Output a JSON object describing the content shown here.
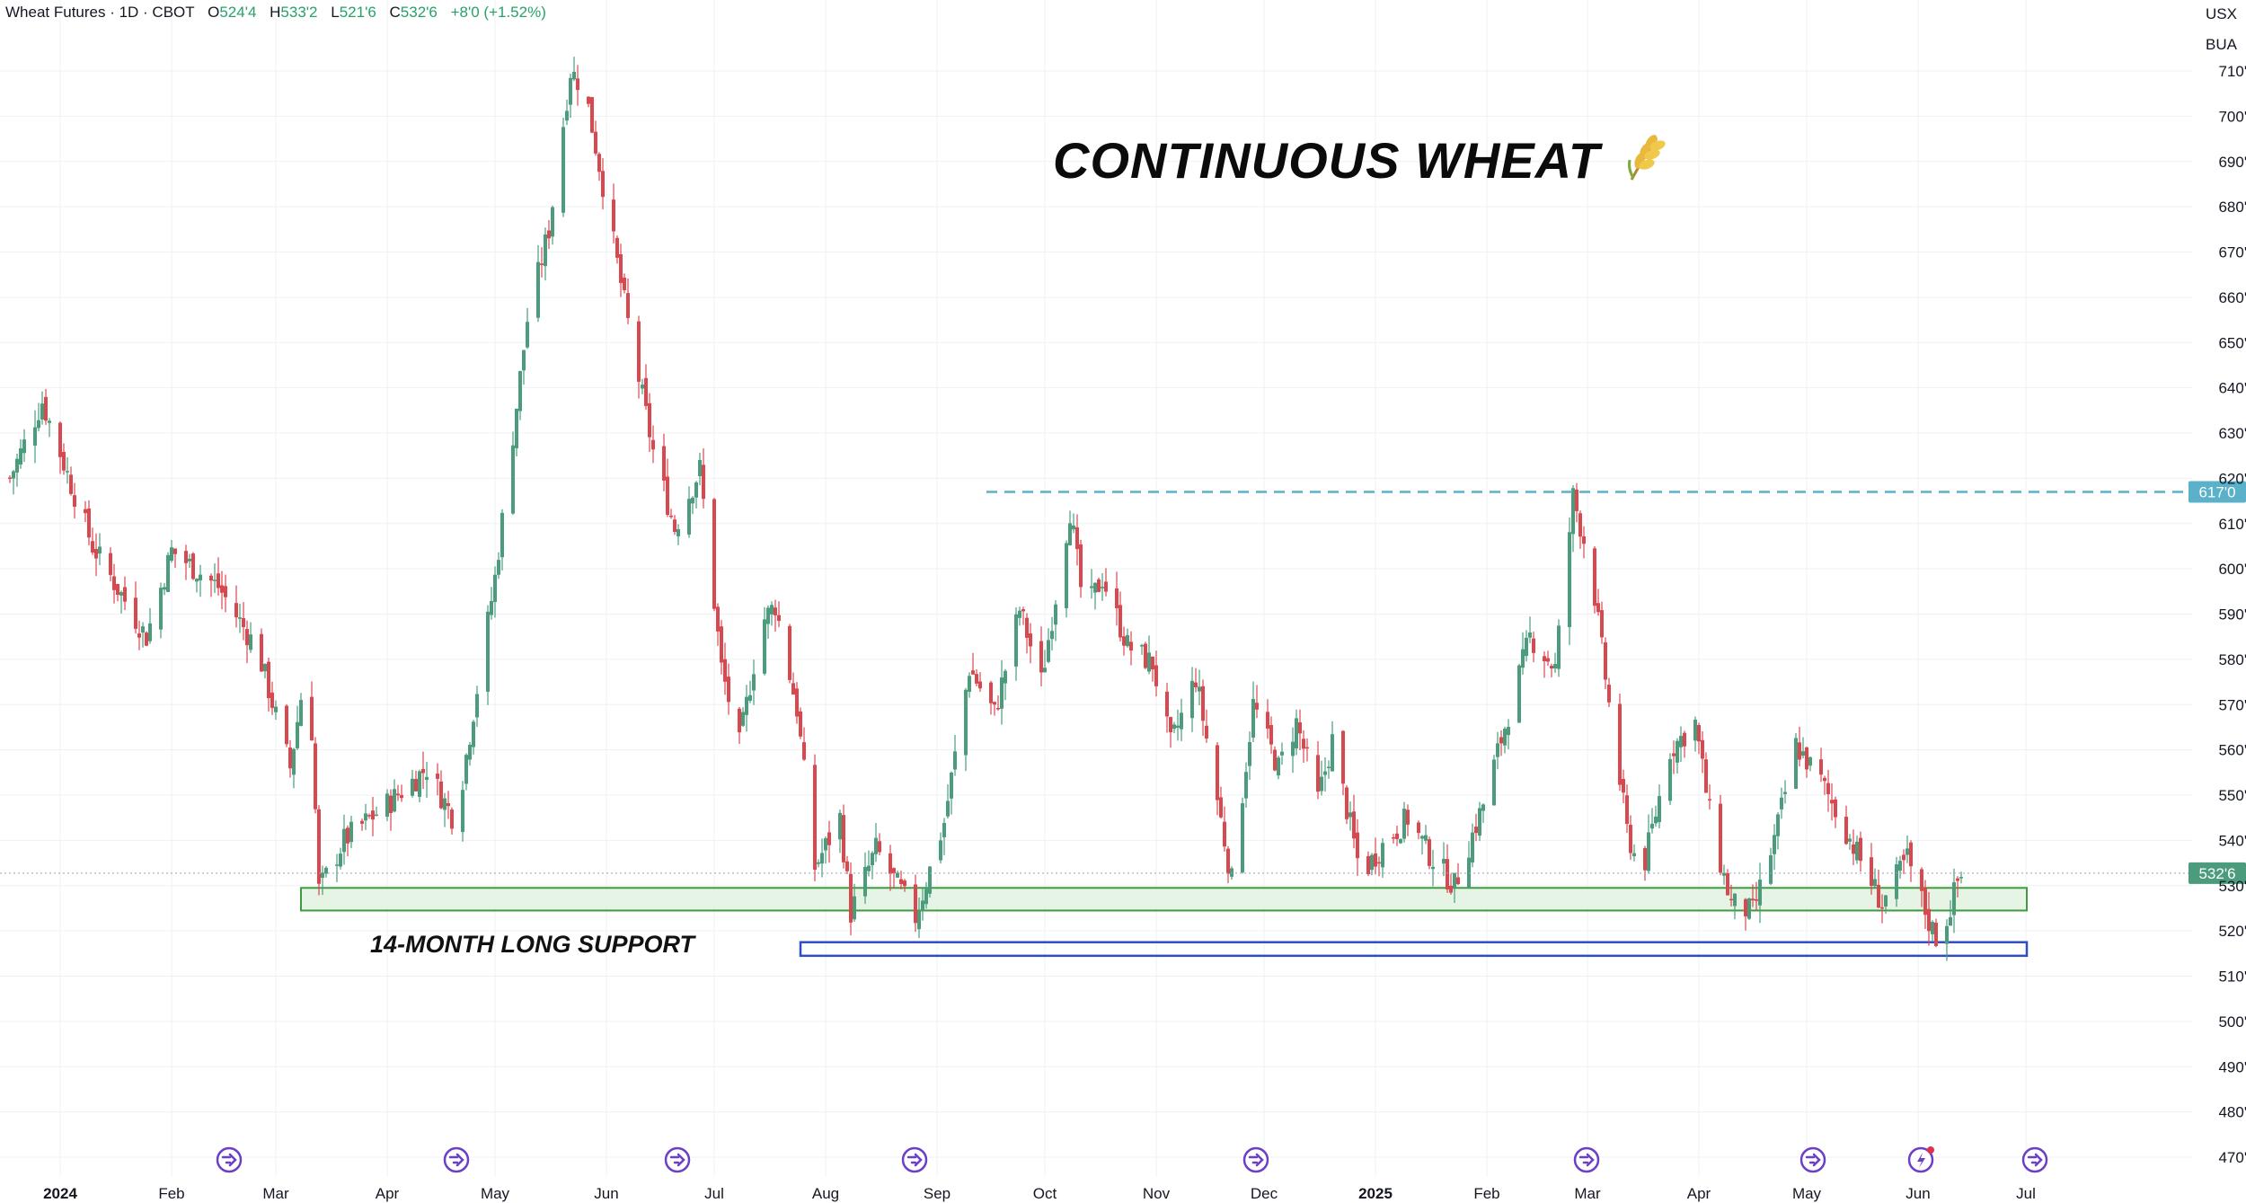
{
  "legend": {
    "title": "Wheat Futures · 1D · CBOT",
    "o_label": "O",
    "o_value": "524'4",
    "h_label": "H",
    "h_value": "533'2",
    "l_label": "L",
    "l_value": "521'6",
    "c_label": "C",
    "c_value": "532'6",
    "change": "+8'0 (+1.52%)"
  },
  "currency": {
    "unit": "USX",
    "unit_name": "BUA"
  },
  "headline": "CONTINUOUS WHEAT",
  "headline_icon": "wheat-icon",
  "support_label": "14-MONTH LONG SUPPORT",
  "price_tags": {
    "resistance": "617'0",
    "last": "532'6"
  },
  "colors": {
    "up": "#4a9c7d",
    "down": "#d9474f",
    "accent_tag": "#5ab1c9",
    "last_tag": "#4a9c7d",
    "support_zone": "#3e9b3e",
    "support_fill": "#e1f2df",
    "low_zone": "#2e4ec2",
    "event_icon": "#6b3fc6"
  },
  "chart_data": {
    "type": "candlestick",
    "symbol": "Wheat Futures",
    "interval": "1D",
    "exchange": "CBOT",
    "ylim": [
      465,
      720
    ],
    "y_ticks": [
      470,
      480,
      490,
      500,
      510,
      520,
      530,
      540,
      550,
      560,
      570,
      580,
      590,
      600,
      610,
      620,
      630,
      640,
      650,
      660,
      670,
      680,
      690,
      700,
      710
    ],
    "y_tick_labels": [
      "470'0",
      "480'0",
      "490'0",
      "500'0",
      "510'0",
      "520'0",
      "530'0",
      "540'0",
      "550'0",
      "560'0",
      "570'0",
      "580'0",
      "590'0",
      "600'0",
      "610'0",
      "620'0",
      "630'0",
      "640'0",
      "650'0",
      "660'0",
      "670'0",
      "680'0",
      "690'0",
      "700'0",
      "710'0"
    ],
    "x_tick_labels": [
      "2024",
      "Feb",
      "Mar",
      "Apr",
      "May",
      "Jun",
      "Jul",
      "Aug",
      "Sep",
      "Oct",
      "Nov",
      "Dec",
      "2025",
      "Feb",
      "Mar",
      "Apr",
      "May",
      "Jun",
      "Jul"
    ],
    "x_tick_bold": [
      true,
      false,
      false,
      false,
      false,
      false,
      false,
      false,
      false,
      false,
      false,
      false,
      true,
      false,
      false,
      false,
      false,
      false,
      false
    ],
    "resistance_level": 617,
    "last_price": 532.75,
    "support_zone": [
      524.5,
      529.5
    ],
    "low_zone": [
      514.5,
      517.5
    ],
    "event_icon_count": 9,
    "grid": true,
    "anchors": [
      [
        "Dec 18",
        620
      ],
      [
        "Dec 27",
        637
      ],
      [
        "Jan 10",
        605
      ],
      [
        "Jan 25",
        585
      ],
      [
        "Feb 1",
        604
      ],
      [
        "Feb 14",
        596
      ],
      [
        "Feb 25",
        582
      ],
      [
        "Mar 5",
        556
      ],
      [
        "Mar 10",
        582
      ],
      [
        "Mar 13",
        529
      ],
      [
        "Mar 20",
        540
      ],
      [
        "Apr 1",
        548
      ],
      [
        "Apr 12",
        556
      ],
      [
        "Apr 20",
        544
      ],
      [
        "May 1",
        598
      ],
      [
        "May 10",
        655
      ],
      [
        "May 16",
        675
      ],
      [
        "May 22",
        710
      ],
      [
        "May 26",
        706
      ],
      [
        "May 31",
        685
      ],
      [
        "Jun 8",
        650
      ],
      [
        "Jun 14",
        626
      ],
      [
        "Jun 20",
        609
      ],
      [
        "Jun 27",
        622
      ],
      [
        "Jul 3",
        578
      ],
      [
        "Jul 8",
        561
      ],
      [
        "Jul 14",
        588
      ],
      [
        "Jul 18",
        592
      ],
      [
        "Jul 24",
        569
      ],
      [
        "Jul 29",
        534
      ],
      [
        "Aug 5",
        545
      ],
      [
        "Aug 8",
        524
      ],
      [
        "Aug 15",
        538
      ],
      [
        "Aug 21",
        530
      ],
      [
        "Aug 26",
        523
      ],
      [
        "Sep 3",
        544
      ],
      [
        "Sep 10",
        578
      ],
      [
        "Sep 17",
        568
      ],
      [
        "Sep 24",
        591
      ],
      [
        "Sep 30",
        575
      ],
      [
        "Oct 8",
        613
      ],
      [
        "Oct 12",
        590
      ],
      [
        "Oct 17",
        598
      ],
      [
        "Oct 24",
        583
      ],
      [
        "Oct 31",
        579
      ],
      [
        "Nov 5",
        561
      ],
      [
        "Nov 12",
        576
      ],
      [
        "Nov 18",
        549
      ],
      [
        "Nov 22",
        531
      ],
      [
        "Nov 28",
        570
      ],
      [
        "Dec 5",
        556
      ],
      [
        "Dec 10",
        566
      ],
      [
        "Dec 16",
        549
      ],
      [
        "Dec 20",
        562
      ],
      [
        "Dec 28",
        532
      ],
      [
        "Jan 2",
        538
      ],
      [
        "Jan 10",
        545
      ],
      [
        "Jan 16",
        537
      ],
      [
        "Jan 23",
        530
      ],
      [
        "Jan 31",
        548
      ],
      [
        "Feb 7",
        568
      ],
      [
        "Feb 13",
        585
      ],
      [
        "Feb 20",
        578
      ],
      [
        "Feb 25",
        616
      ],
      [
        "Mar 2",
        600
      ],
      [
        "Mar 7",
        570
      ],
      [
        "Mar 12",
        542
      ],
      [
        "Mar 16",
        532
      ],
      [
        "Mar 24",
        560
      ],
      [
        "Mar 31",
        566
      ],
      [
        "Apr 5",
        541
      ],
      [
        "Apr 10",
        526
      ],
      [
        "Apr 16",
        524
      ],
      [
        "Apr 22",
        540
      ],
      [
        "Apr 28",
        561
      ],
      [
        "May 5",
        553
      ],
      [
        "May 12",
        542
      ],
      [
        "May 17",
        534
      ],
      [
        "May 22",
        526
      ],
      [
        "May 29",
        536
      ],
      [
        "Jun 4",
        522
      ],
      [
        "Jun 7",
        517
      ],
      [
        "Jun 12",
        531
      ],
      [
        "Jun 14",
        532.75
      ]
    ]
  }
}
